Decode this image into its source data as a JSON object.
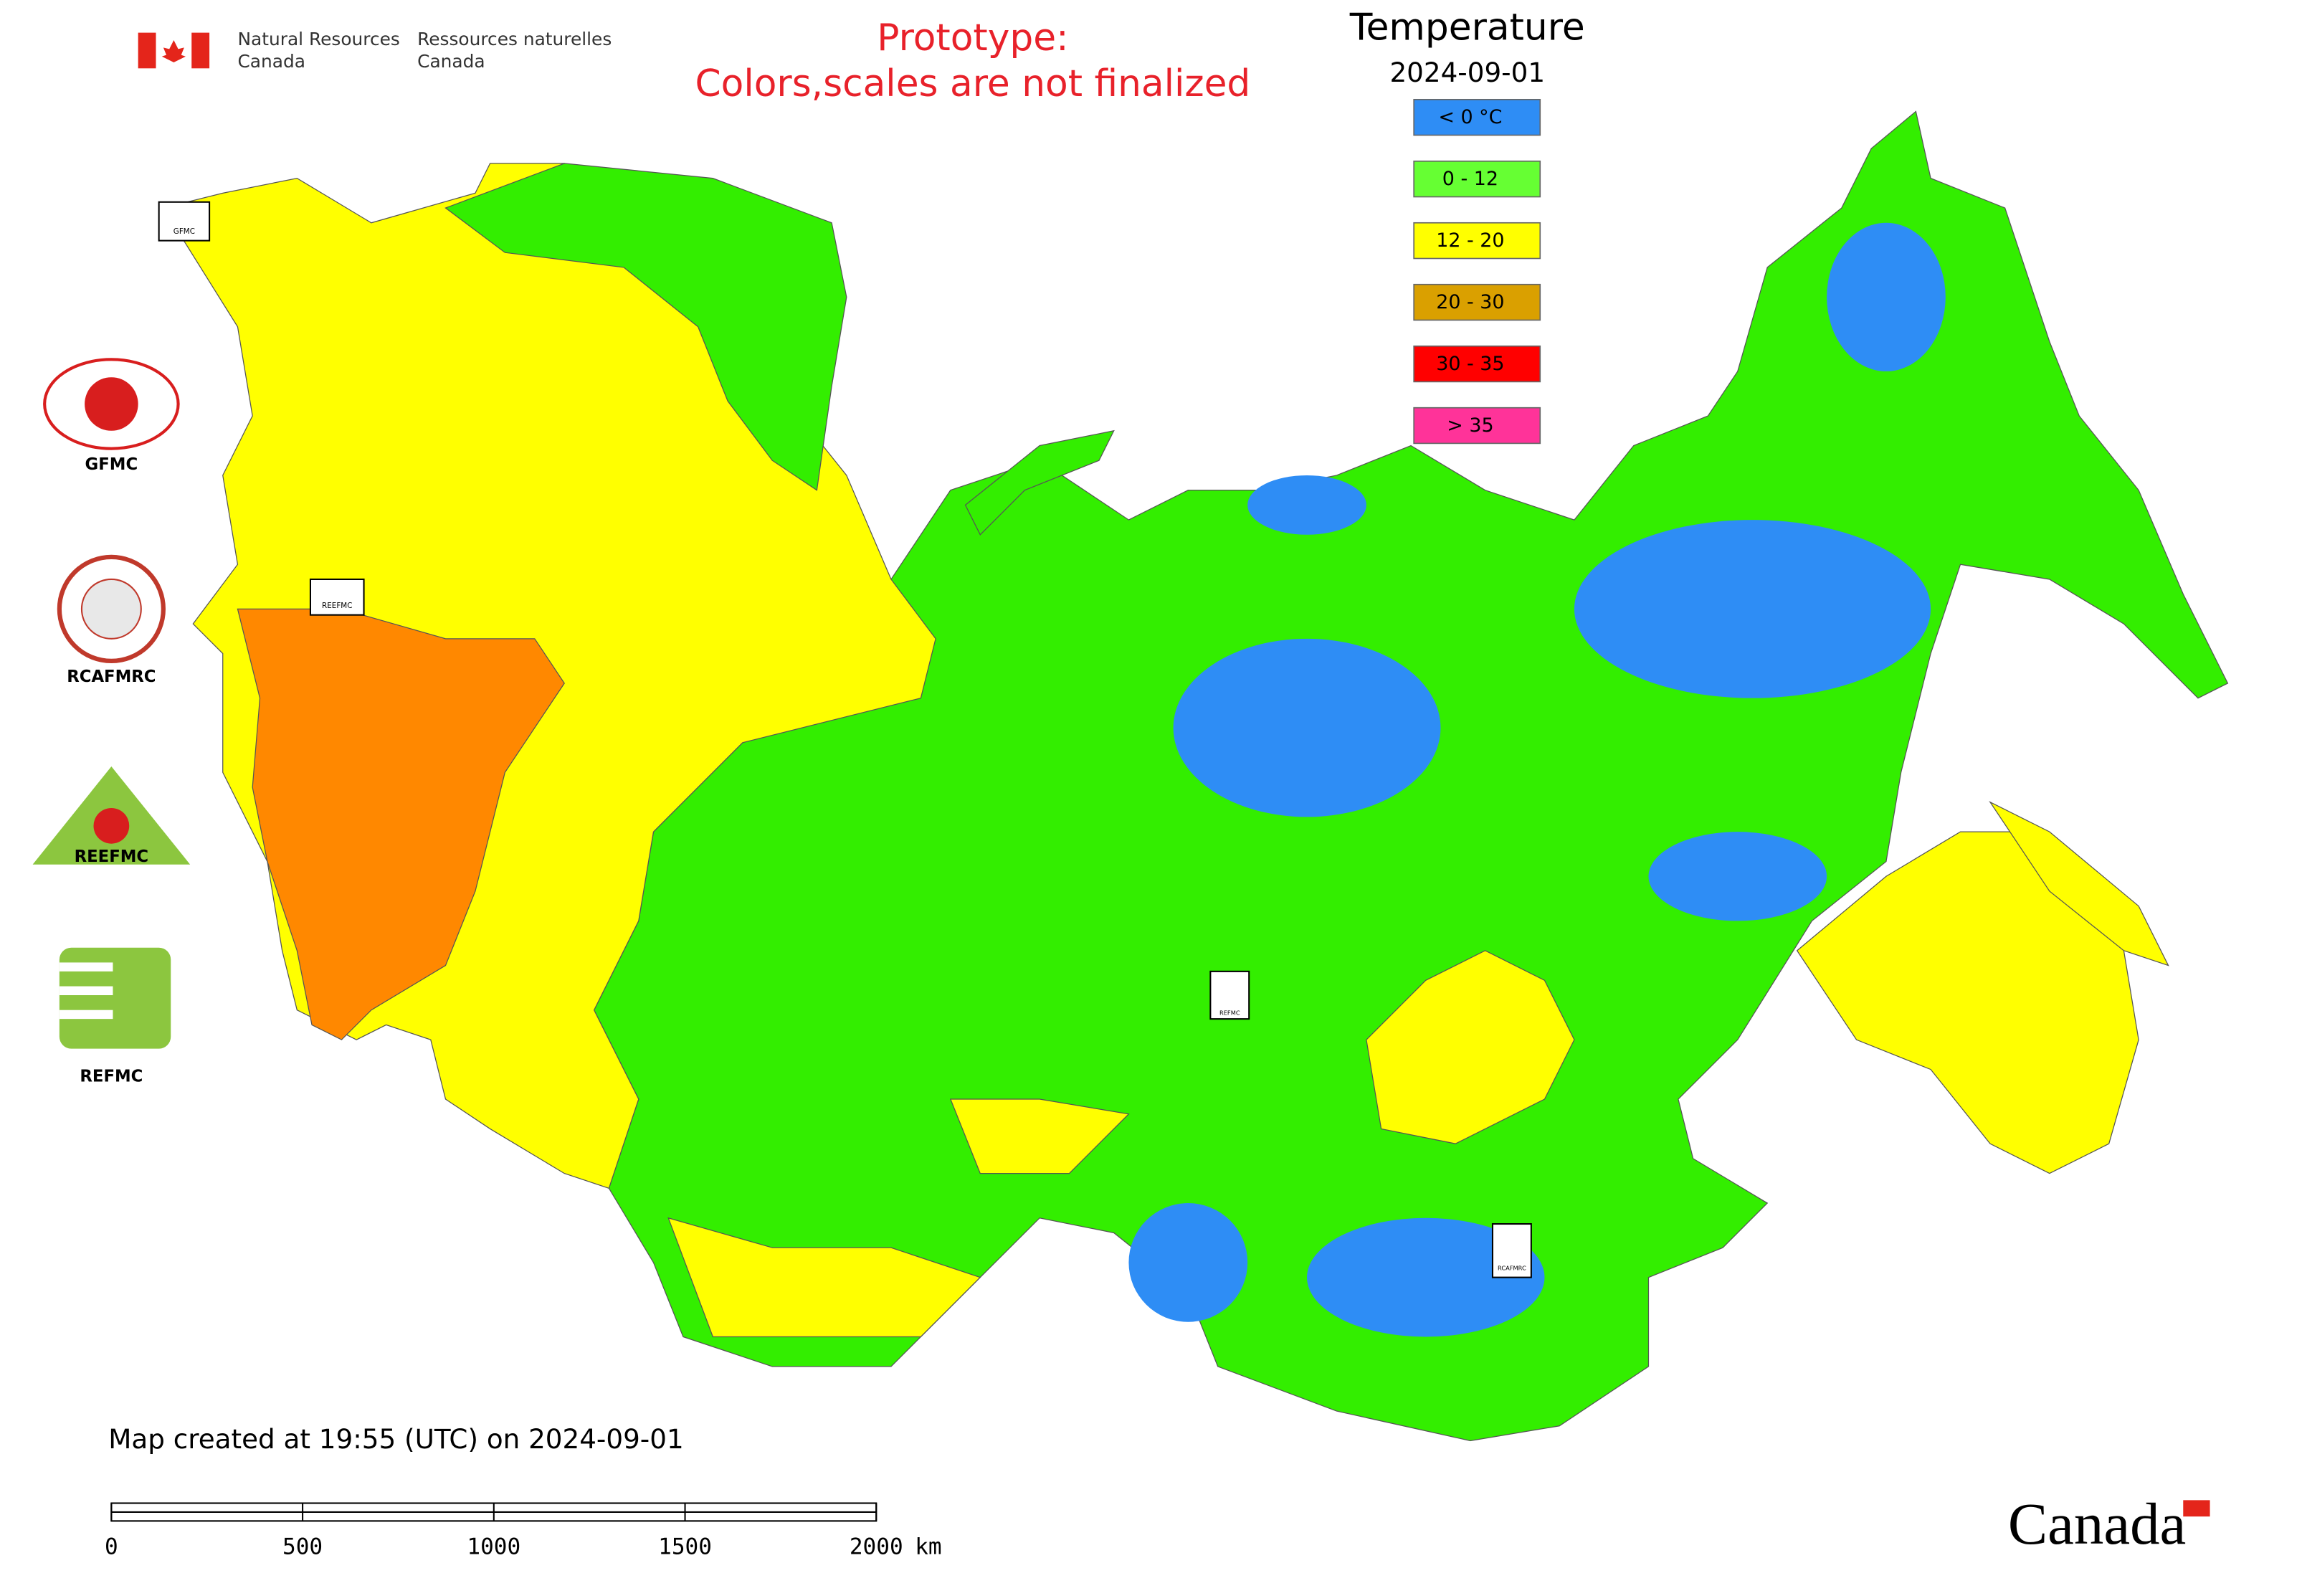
{
  "header": {
    "org_en": [
      "Natural Resources",
      "Canada"
    ],
    "org_fr": [
      "Ressources naturelles",
      "Canada"
    ],
    "note": [
      "Prototype:",
      "Colors,scales are not finalized"
    ]
  },
  "legend": {
    "title": "Temperature",
    "date": "2024-09-01",
    "items": [
      {
        "label": "< 0 °C",
        "color": "#2e8df5"
      },
      {
        "label": "0 - 12",
        "color": "#66ff33"
      },
      {
        "label": "12 - 20",
        "color": "#ffff00"
      },
      {
        "label": "20 - 30",
        "color": "#daa000"
      },
      {
        "label": "30 - 35",
        "color": "#ff0000"
      },
      {
        "label": "> 35",
        "color": "#ff3399"
      }
    ]
  },
  "logos": [
    "GFMC",
    "RCAFMRC",
    "REEFMC",
    "REFMC"
  ],
  "map_markers": [
    "GFMC",
    "REEFMC",
    "REFMC",
    "RCAFMRC"
  ],
  "footer": {
    "created": "Map created at 19:55 (UTC) on 2024-09-01",
    "wordmark": "Canada"
  },
  "scale_bar": {
    "ticks": [
      0,
      500,
      1000,
      1500,
      2000
    ],
    "unit": "km"
  }
}
